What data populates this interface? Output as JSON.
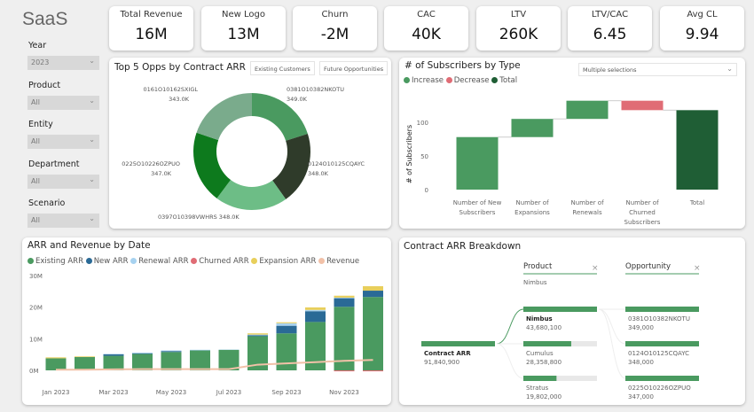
{
  "app": {
    "title": "SaaS"
  },
  "kpis": [
    {
      "label": "Total Revenue",
      "value": "16M"
    },
    {
      "label": "New Logo",
      "value": "13M"
    },
    {
      "label": "Churn",
      "value": "-2M"
    },
    {
      "label": "CAC",
      "value": "40K"
    },
    {
      "label": "LTV",
      "value": "260K"
    },
    {
      "label": "LTV/CAC",
      "value": "6.45"
    },
    {
      "label": "Avg CL",
      "value": "9.94"
    }
  ],
  "slicers": [
    {
      "label": "Year",
      "value": "2023"
    },
    {
      "label": "Product",
      "value": "All"
    },
    {
      "label": "Entity",
      "value": "All"
    },
    {
      "label": "Department",
      "value": "All"
    },
    {
      "label": "Scenario",
      "value": "All"
    }
  ],
  "donut": {
    "title": "Top 5 Opps by Contract ARR",
    "buttons": [
      "Existing Customers",
      "Future Opportunities"
    ],
    "chart_data": {
      "type": "pie",
      "donut": true,
      "slices": [
        {
          "label": "0381O10382NKOTU",
          "value": 349.0,
          "display": "349.0K",
          "color": "#4a9a60"
        },
        {
          "label": "0124O10125CQAYC",
          "value": 348.0,
          "display": "348.0K",
          "color": "#2f3b2a"
        },
        {
          "label": "0397O10398VWHRS",
          "value": 348.0,
          "display": "348.0K",
          "color": "#6dbd86"
        },
        {
          "label": "0225O10226OZPUO",
          "value": 347.0,
          "display": "347.0K",
          "color": "#0d7a1d"
        },
        {
          "label": "0161O10162SXIGL",
          "value": 343.0,
          "display": "343.0K",
          "color": "#7aab8c"
        }
      ]
    }
  },
  "waterfall": {
    "title": "# of Subscribers by Type",
    "dropdown": "Multiple selections",
    "chart_data": {
      "type": "bar",
      "subtype": "waterfall",
      "ylabel": "# of Subscribers",
      "ylim": [
        0,
        135
      ],
      "yticks": [
        0,
        50,
        100
      ],
      "legend": [
        {
          "name": "Increase",
          "color": "#4a9a60"
        },
        {
          "name": "Decrease",
          "color": "#e06c75"
        },
        {
          "name": "Total",
          "color": "#1f5e35"
        }
      ],
      "categories": [
        "Number of New Subscribers",
        "Number of Expansions",
        "Number of Renewals",
        "Number of Churned Subscribers",
        "Total"
      ],
      "values": [
        78,
        27,
        27,
        -14,
        118
      ]
    }
  },
  "arr": {
    "title": "ARR and Revenue by Date",
    "chart_data": {
      "type": "bar",
      "stacked": true,
      "ylim": [
        -1,
        30
      ],
      "yticks": [
        "0M",
        "10M",
        "20M",
        "30M"
      ],
      "xticks": [
        "Jan 2023",
        "Mar 2023",
        "May 2023",
        "Jul 2023",
        "Sep 2023",
        "Nov 2023"
      ],
      "categories": [
        "Jan 2023",
        "Feb 2023",
        "Mar 2023",
        "Apr 2023",
        "May 2023",
        "Jun 2023",
        "Jul 2023",
        "Aug 2023",
        "Sep 2023",
        "Oct 2023",
        "Nov 2023",
        "Dec 2023"
      ],
      "series": [
        {
          "name": "Existing ARR",
          "color": "#4a9a60",
          "values": [
            3.8,
            4.2,
            4.6,
            5.2,
            5.8,
            6.3,
            6.5,
            10.8,
            11.7,
            15.3,
            20.1,
            23.2
          ]
        },
        {
          "name": "New ARR",
          "color": "#2a6a96",
          "values": [
            0,
            0,
            0.5,
            0.2,
            0.3,
            0,
            0,
            0.3,
            2.4,
            3.4,
            2.7,
            2.0
          ]
        },
        {
          "name": "Renewal ARR",
          "color": "#a7d2f0",
          "values": [
            0,
            0,
            0.1,
            0.2,
            0.2,
            0.2,
            0.1,
            0.2,
            0.8,
            0.4,
            0.2,
            0
          ]
        },
        {
          "name": "Churned ARR",
          "color": "#e06c75",
          "values": [
            0,
            0,
            0,
            0,
            0,
            0,
            0,
            0,
            0,
            0,
            -0.3,
            -0.3
          ]
        },
        {
          "name": "Expansion ARR",
          "color": "#e8cf5b",
          "values": [
            0.3,
            0.2,
            0,
            0,
            0,
            0,
            0,
            0.4,
            0.3,
            0.8,
            0.6,
            1.4
          ]
        },
        {
          "name": "Revenue",
          "color": "#f2c1a8",
          "type": "line",
          "values": [
            0.2,
            0.2,
            0.3,
            0.4,
            0.4,
            0.4,
            0.4,
            1.8,
            2.2,
            2.6,
            3.0,
            3.3
          ]
        }
      ]
    }
  },
  "breakdown": {
    "title": "Contract ARR Breakdown",
    "root": {
      "label": "Contract ARR",
      "value": "91,840,900"
    },
    "product": {
      "header": "Product",
      "selected": "Nimbus",
      "items": [
        {
          "label": "Nimbus",
          "value": "43,680,100",
          "fraction": 1.0
        },
        {
          "label": "Cumulus",
          "value": "28,358,800",
          "fraction": 0.65
        },
        {
          "label": "Stratus",
          "value": "19,802,000",
          "fraction": 0.45
        }
      ]
    },
    "opportunity": {
      "header": "Opportunity",
      "items": [
        {
          "label": "0381O10382NKOTU",
          "value": "349,000",
          "fraction": 1.0
        },
        {
          "label": "0124O10125CQAYC",
          "value": "348,000",
          "fraction": 1.0
        },
        {
          "label": "0225O10226OZPUO",
          "value": "347,000",
          "fraction": 1.0
        }
      ]
    },
    "accent": "#4a9a60"
  }
}
